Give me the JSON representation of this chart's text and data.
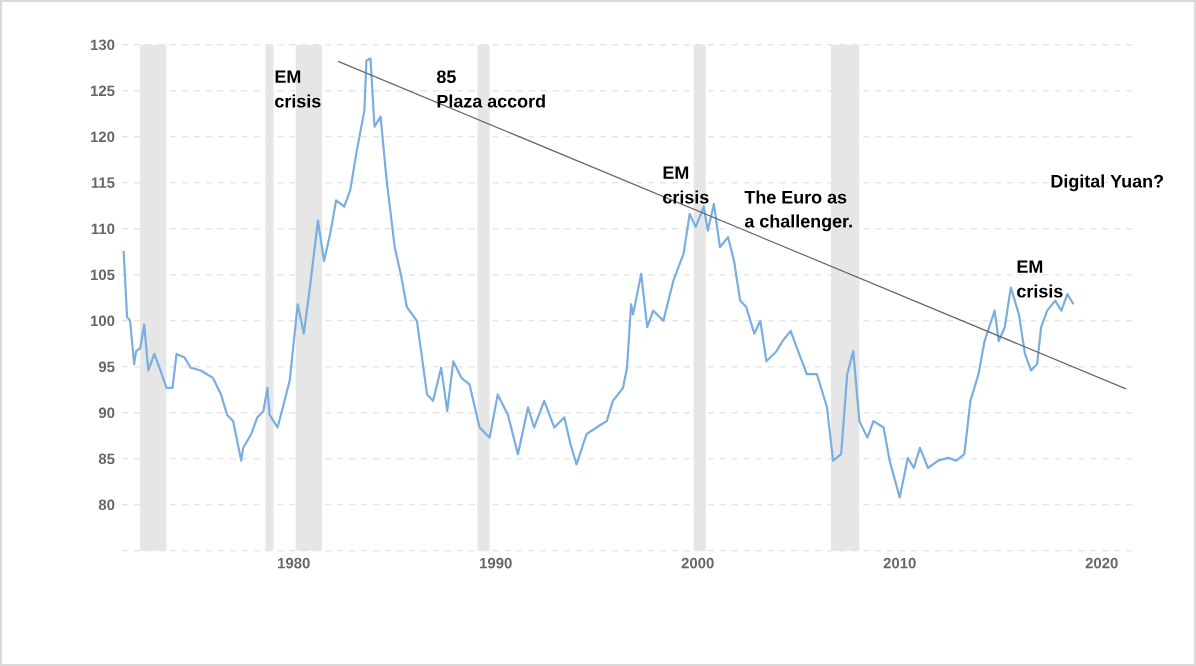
{
  "chart_data": {
    "type": "line",
    "xlim": [
      1971.5,
      2021.5
    ],
    "ylim": [
      75,
      130
    ],
    "xticks": [
      1980,
      1990,
      2000,
      2010,
      2020
    ],
    "yticks": [
      80,
      85,
      90,
      95,
      100,
      105,
      110,
      115,
      120,
      125,
      130
    ],
    "grid": "y",
    "bands": [
      {
        "axis": "x",
        "from": 1972.4,
        "to": 1973.7,
        "color": "#e6e6e6"
      },
      {
        "axis": "x",
        "from": 1978.6,
        "to": 1979.0,
        "color": "#e6e6e6"
      },
      {
        "axis": "x",
        "from": 1980.1,
        "to": 1981.4,
        "color": "#e6e6e6"
      },
      {
        "axis": "x",
        "from": 1989.1,
        "to": 1989.7,
        "color": "#e6e6e6"
      },
      {
        "axis": "x",
        "from": 1999.8,
        "to": 2000.4,
        "color": "#e6e6e6"
      },
      {
        "axis": "x",
        "from": 2006.6,
        "to": 2008.0,
        "color": "#e6e6e6"
      }
    ],
    "series": [
      {
        "color": "#7aaee0",
        "x": [
          1971.58,
          1971.75,
          1971.9,
          1972.1,
          1972.2,
          1972.4,
          1972.6,
          1972.8,
          1973.1,
          1973.4,
          1973.7,
          1974.0,
          1974.2,
          1974.6,
          1974.9,
          1975.4,
          1975.7,
          1976.0,
          1976.4,
          1976.7,
          1977.0,
          1977.4,
          1977.5,
          1977.9,
          1978.2,
          1978.5,
          1978.7,
          1978.8,
          1979.2,
          1979.5,
          1979.8,
          1980.2,
          1980.5,
          1980.8,
          1981.2,
          1981.5,
          1981.8,
          1982.1,
          1982.5,
          1982.8,
          1983.1,
          1983.5,
          1983.6,
          1983.8,
          1984.0,
          1984.3,
          1984.6,
          1985.0,
          1985.3,
          1985.6,
          1986.1,
          1986.6,
          1986.9,
          1987.3,
          1987.6,
          1987.9,
          1988.3,
          1988.7,
          1989.2,
          1989.7,
          1990.1,
          1990.6,
          1991.1,
          1991.6,
          1991.9,
          1992.4,
          1992.9,
          1993.4,
          1993.7,
          1994.0,
          1994.5,
          1995.2,
          1995.5,
          1995.8,
          1996.3,
          1996.5,
          1996.7,
          1996.8,
          1997.2,
          1997.5,
          1997.8,
          1998.3,
          1998.8,
          1999.3,
          1999.6,
          1999.9,
          2000.3,
          2000.5,
          2000.8,
          2001.1,
          2001.5,
          2001.8,
          2002.1,
          2002.4,
          2002.8,
          2003.1,
          2003.4,
          2003.9,
          2004.2,
          2004.6,
          2004.9,
          2005.4,
          2005.9,
          2006.4,
          2006.7,
          2007.1,
          2007.4,
          2007.7,
          2008.0,
          2008.4,
          2008.7,
          2009.2,
          2009.5,
          2010.0,
          2010.4,
          2010.7,
          2011.0,
          2011.4,
          2011.9,
          2012.4,
          2012.8,
          2013.2,
          2013.5,
          2013.9,
          2014.2,
          2014.7,
          2014.9,
          2015.2,
          2015.5,
          2015.9,
          2016.2,
          2016.5,
          2016.8,
          2017.0,
          2017.3,
          2017.7,
          2018.0,
          2018.3,
          2018.6
        ],
        "values": [
          107.6,
          100.4,
          100,
          95.3,
          96.7,
          97,
          99.6,
          94.6,
          96.4,
          94.6,
          92.7,
          92.7,
          96.4,
          96,
          94.9,
          94.6,
          94.2,
          93.8,
          92,
          89.8,
          89.1,
          84.8,
          86.2,
          87.7,
          89.5,
          90.2,
          92.7,
          89.8,
          88.4,
          90.9,
          93.5,
          101.8,
          98.6,
          103.6,
          110.9,
          106.5,
          109.4,
          113.1,
          112.4,
          114.2,
          118.2,
          122.9,
          128.3,
          128.5,
          121.1,
          122.2,
          115.3,
          108,
          105.1,
          101.5,
          100,
          92,
          91.3,
          94.9,
          90.2,
          95.6,
          93.8,
          93.1,
          88.4,
          87.3,
          92,
          89.8,
          85.5,
          90.6,
          88.4,
          91.3,
          88.4,
          89.5,
          86.6,
          84.4,
          87.7,
          88.7,
          89.1,
          91.3,
          92.7,
          94.9,
          101.8,
          100.7,
          105.1,
          99.3,
          101.1,
          100,
          104.4,
          107.3,
          111.6,
          110.2,
          112.4,
          109.8,
          112.7,
          108,
          109.1,
          106.5,
          102.2,
          101.5,
          98.6,
          100,
          95.6,
          96.7,
          97.8,
          98.9,
          97.1,
          94.2,
          94.2,
          90.6,
          84.8,
          85.5,
          94.2,
          96.7,
          89.1,
          87.3,
          89.1,
          88.4,
          84.8,
          80.8,
          85.1,
          84,
          86.2,
          84,
          84.8,
          85.1,
          84.8,
          85.5,
          91.3,
          94.2,
          97.8,
          101.1,
          97.8,
          99.3,
          103.6,
          100.7,
          96.4,
          94.6,
          95.3,
          99.3,
          101.1,
          102.2,
          101.1,
          102.9,
          101.8
        ]
      },
      {
        "type": "line",
        "color": "#666666",
        "x": [
          1982.2,
          2021.2
        ],
        "values": [
          128.2,
          92.6
        ]
      }
    ],
    "annotations": [
      "EM",
      "crisis",
      "85",
      "Plaza accord",
      "EM",
      "crisis",
      "The Euro as",
      "a challenger.",
      "Digital Yuan?",
      "EM",
      "crisis"
    ]
  }
}
